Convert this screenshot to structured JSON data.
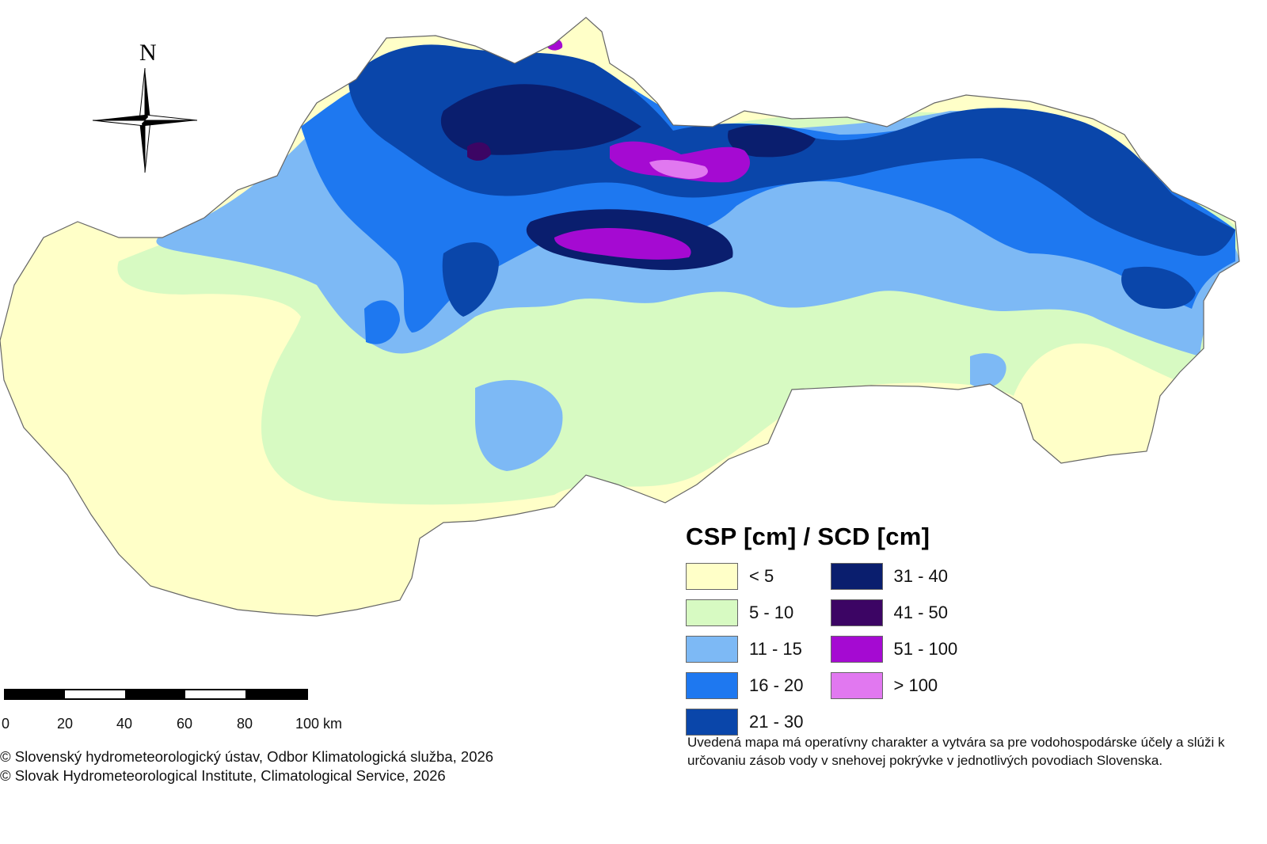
{
  "map": {
    "compass_label": "N",
    "colors": {
      "lt5": "#FFFFC8",
      "5to10": "#D7FAC2",
      "11to15": "#7DB9F5",
      "16to20": "#1E78F0",
      "21to30": "#0A46AA",
      "31to40": "#0A1E6E",
      "41to50": "#3C0564",
      "51to100": "#A50AD2",
      "gt100": "#E178F0"
    }
  },
  "legend": {
    "title": "CSP [cm] / SCD [cm]",
    "items": [
      {
        "label": "< 5",
        "color": "#FFFFC8"
      },
      {
        "label": "5 - 10",
        "color": "#D7FAC2"
      },
      {
        "label": "11 - 15",
        "color": "#7DB9F5"
      },
      {
        "label": "16 - 20",
        "color": "#1E78F0"
      },
      {
        "label": "21 - 30",
        "color": "#0A46AA"
      },
      {
        "label": "31 - 40",
        "color": "#0A1E6E"
      },
      {
        "label": "41 - 50",
        "color": "#3C0564"
      },
      {
        "label": "51 - 100",
        "color": "#A50AD2"
      },
      {
        "label": "> 100",
        "color": "#E178F0"
      }
    ]
  },
  "scale_bar": {
    "labels": [
      "0",
      "20",
      "40",
      "60",
      "80",
      "100 km"
    ]
  },
  "copyright": {
    "line1": "© Slovenský hydrometeorologický ústav, Odbor Klimatologická služba, 2026",
    "line2": "© Slovak Hydrometeorological Institute, Climatological Service, 2026"
  },
  "note": {
    "text": "Uvedená mapa má operatívny charakter a vytvára sa pre vodohospodárske účely a slúži k určovaniu zásob vody v snehovej pokrývke v jednotlivých povodiach Slovenska."
  }
}
